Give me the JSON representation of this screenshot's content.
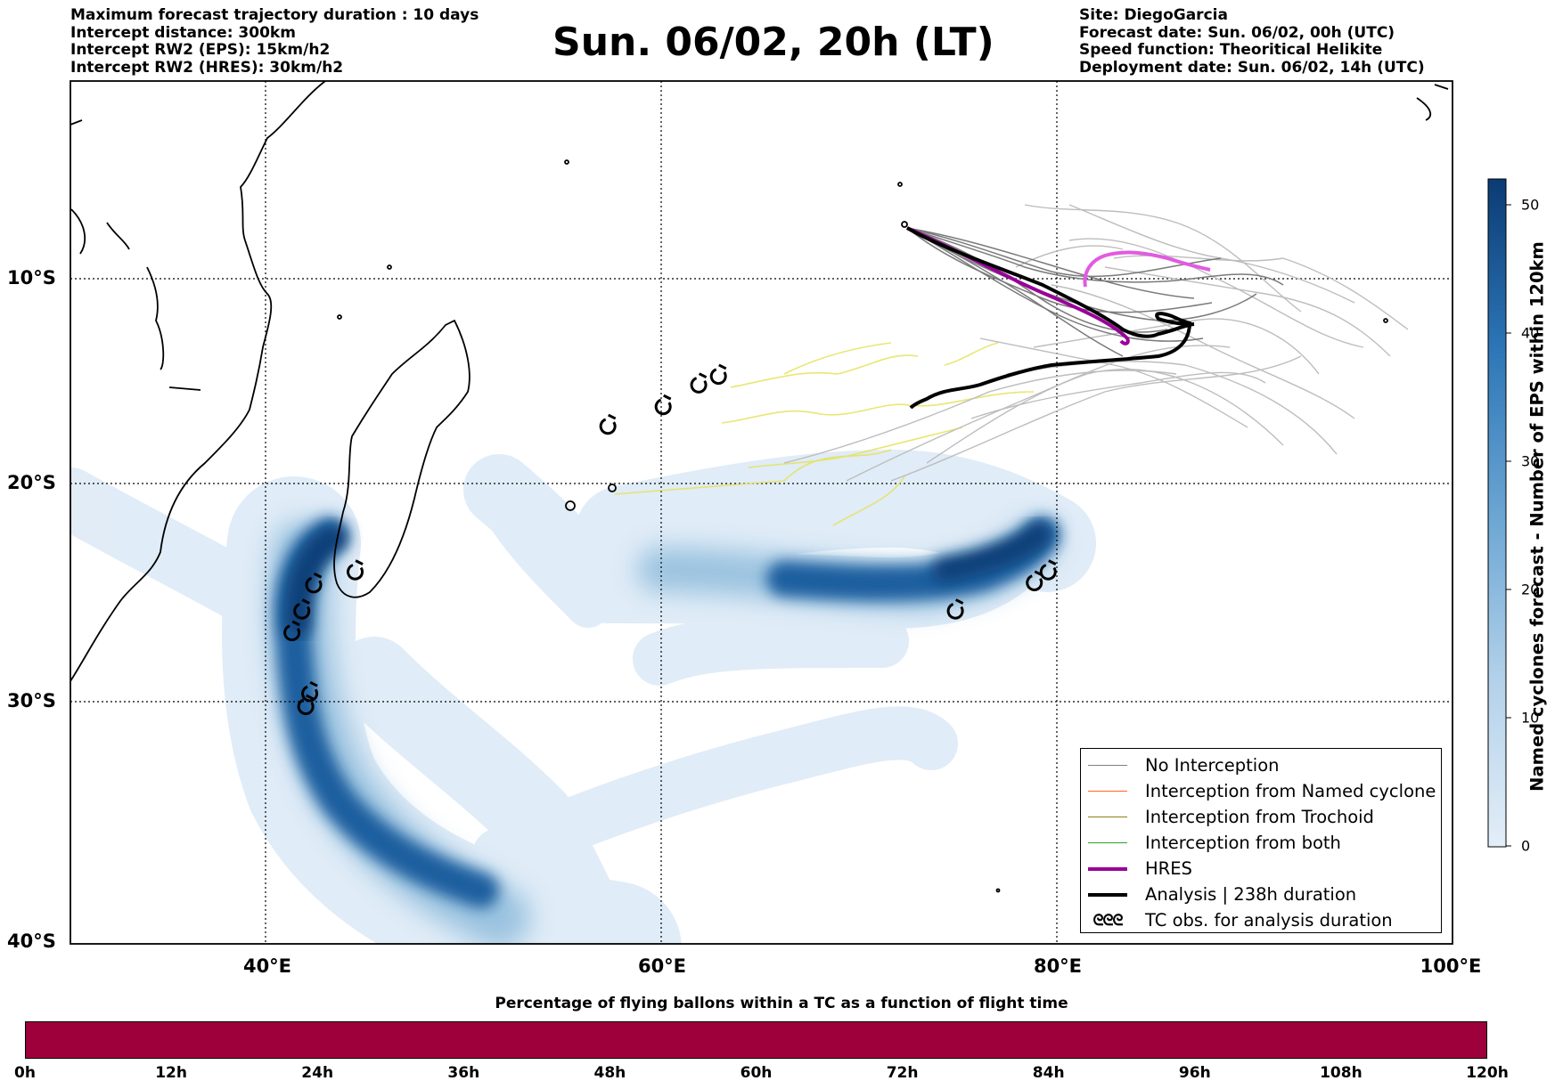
{
  "header_left": [
    "Maximum forecast trajectory duration : 10 days",
    "Intercept distance: 300km",
    "Intercept RW2 (EPS):  15km/h2",
    "Intercept RW2 (HRES): 30km/h2"
  ],
  "title": "Sun. 06/02, 20h (LT)",
  "header_right": [
    "Site: DiegoGarcia",
    "Forecast date: Sun. 06/02, 00h (UTC)",
    "Speed function: Theoritical Helikite",
    "Deployment date: Sun. 06/02, 14h (UTC)"
  ],
  "map": {
    "lat_labels": [
      "10°S",
      "20°S",
      "30°S",
      "40°S"
    ],
    "lon_labels": [
      "40°E",
      "60°E",
      "80°E",
      "100°E"
    ],
    "lon_range": [
      30,
      100
    ],
    "lat_range": [
      -40,
      -0.3
    ],
    "grid": "dotted"
  },
  "legend": {
    "items": [
      {
        "label": "No Interception",
        "color": "#808080"
      },
      {
        "label": "Interception from Named cyclone",
        "color": "#ff6a1a"
      },
      {
        "label": "Interception from Trochoid",
        "color": "#8b7d1a"
      },
      {
        "label": "Interception from both",
        "color": "#2e9e2e"
      },
      {
        "label": "HRES",
        "color": "#990099"
      },
      {
        "label": "Analysis | 238h duration",
        "color": "#000000"
      },
      {
        "label": "TC obs. for analysis duration",
        "symbol": "ᘓᘓᘓ"
      }
    ],
    "placement": "bottom-right"
  },
  "colorbar": {
    "title": "Named cyclones forecast - Number of EPS within 120km",
    "ticks": [
      "0",
      "10",
      "20",
      "30",
      "40",
      "50"
    ],
    "range": [
      0,
      52
    ],
    "color_low": "#e3eef8",
    "color_high": "#0b3b73"
  },
  "flight_bar": {
    "title": "Percentage of flying ballons within a TC as a function of flight time",
    "ticks": [
      "0h",
      "12h",
      "24h",
      "36h",
      "48h",
      "60h",
      "72h",
      "84h",
      "96h",
      "108h",
      "120h"
    ],
    "color": "#9e003c"
  },
  "analysis_track": {
    "tc_obs": [
      [
        44.4,
        -22.9
      ],
      [
        42.3,
        -23.5
      ],
      [
        41.7,
        -24.7
      ],
      [
        41.2,
        -25.7
      ],
      [
        42.1,
        -28.5
      ],
      [
        41.9,
        -29.1
      ],
      [
        57.2,
        -16.2
      ],
      [
        60,
        -15.3
      ],
      [
        61.8,
        -14.3
      ],
      [
        62.8,
        -13.9
      ],
      [
        74.8,
        -24.7
      ],
      [
        78.8,
        -23.4
      ],
      [
        79.5,
        -22.9
      ]
    ]
  }
}
